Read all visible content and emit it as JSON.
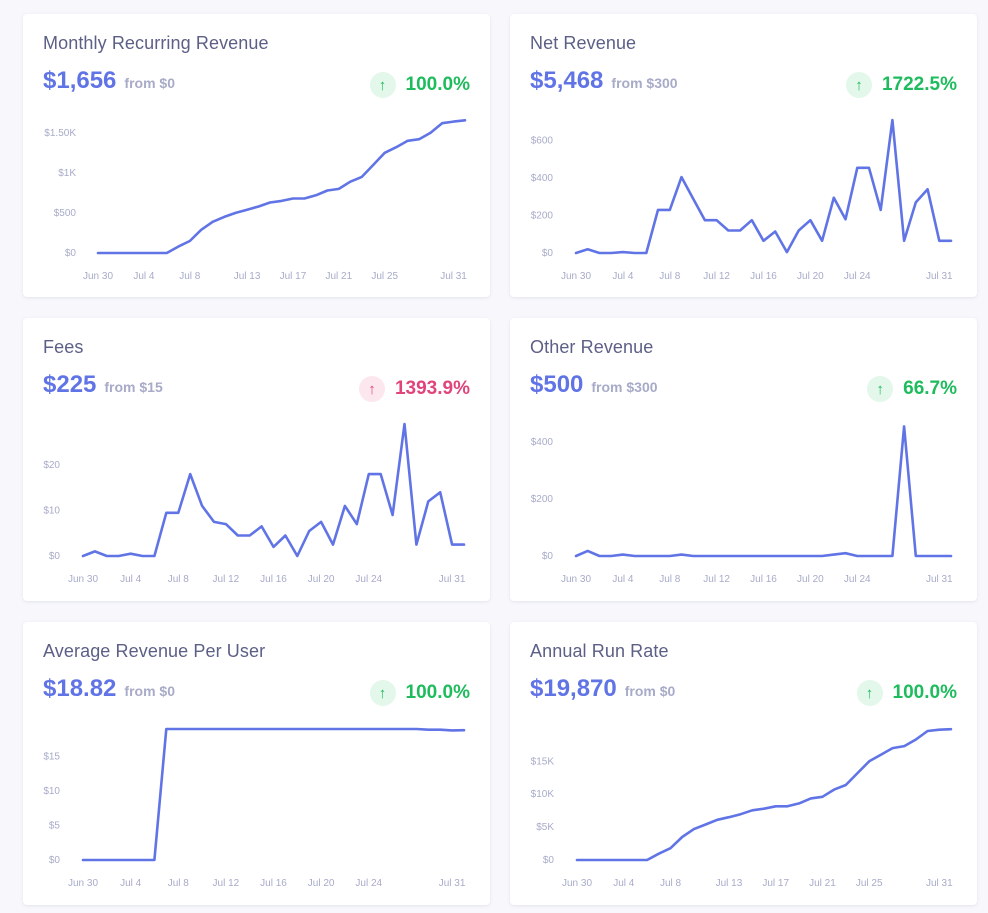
{
  "cards": [
    {
      "title": "Monthly Recurring Revenue",
      "value": "$1,656",
      "from": "from $0",
      "change": "100.0%",
      "direction": "up"
    },
    {
      "title": "Net Revenue",
      "value": "$5,468",
      "from": "from $300",
      "change": "1722.5%",
      "direction": "up"
    },
    {
      "title": "Fees",
      "value": "$225",
      "from": "from $15",
      "change": "1393.9%",
      "direction": "down"
    },
    {
      "title": "Other Revenue",
      "value": "$500",
      "from": "from $300",
      "change": "66.7%",
      "direction": "up"
    },
    {
      "title": "Average Revenue Per User",
      "value": "$18.82",
      "from": "from $0",
      "change": "100.0%",
      "direction": "up"
    },
    {
      "title": "Annual Run Rate",
      "value": "$19,870",
      "from": "from $0",
      "change": "100.0%",
      "direction": "up"
    }
  ],
  "colors": {
    "line": "#6174e6",
    "up": "#1ebc5d",
    "down": "#e0447a"
  },
  "icons": {
    "change": "arrow-up-icon"
  },
  "chart_data": [
    {
      "type": "line",
      "x": [
        0,
        1,
        2,
        3,
        4,
        5,
        6,
        7,
        8,
        9,
        10,
        11,
        12,
        13,
        14,
        15,
        16,
        17,
        18,
        19,
        20,
        21,
        22,
        23,
        24,
        25,
        26,
        27,
        28,
        29,
        30,
        31,
        32
      ],
      "xticks": [
        {
          "i": 0,
          "label": "Jun 30"
        },
        {
          "i": 4,
          "label": "Jul 4"
        },
        {
          "i": 8,
          "label": "Jul 8"
        },
        {
          "i": 13,
          "label": "Jul 13"
        },
        {
          "i": 17,
          "label": "Jul 17"
        },
        {
          "i": 21,
          "label": "Jul 21"
        },
        {
          "i": 25,
          "label": "Jul 25"
        },
        {
          "i": 31,
          "label": "Jul 31"
        }
      ],
      "yticks": [
        {
          "v": 0,
          "label": "$0"
        },
        {
          "v": 500,
          "label": "$500"
        },
        {
          "v": 1000,
          "label": "$1K"
        },
        {
          "v": 1500,
          "label": "$1.50K"
        }
      ],
      "ylim": [
        0,
        1660
      ],
      "values": [
        0,
        0,
        0,
        0,
        0,
        0,
        0,
        80,
        150,
        290,
        390,
        450,
        500,
        540,
        580,
        630,
        650,
        680,
        680,
        720,
        780,
        800,
        890,
        950,
        1100,
        1250,
        1320,
        1400,
        1420,
        1500,
        1620,
        1640,
        1656
      ]
    },
    {
      "type": "line",
      "x": [
        0,
        1,
        2,
        3,
        4,
        5,
        6,
        7,
        8,
        9,
        10,
        11,
        12,
        13,
        14,
        15,
        16,
        17,
        18,
        19,
        20,
        21,
        22,
        23,
        24,
        25,
        26,
        27,
        28,
        29,
        30,
        31,
        32
      ],
      "xticks": [
        {
          "i": 0,
          "label": "Jun 30"
        },
        {
          "i": 4,
          "label": "Jul 4"
        },
        {
          "i": 8,
          "label": "Jul 8"
        },
        {
          "i": 12,
          "label": "Jul 12"
        },
        {
          "i": 16,
          "label": "Jul 16"
        },
        {
          "i": 20,
          "label": "Jul 20"
        },
        {
          "i": 24,
          "label": "Jul 24"
        },
        {
          "i": 31,
          "label": "Jul 31"
        }
      ],
      "yticks": [
        {
          "v": 0,
          "label": "$0"
        },
        {
          "v": 200,
          "label": "$200"
        },
        {
          "v": 400,
          "label": "$400"
        },
        {
          "v": 600,
          "label": "$600"
        }
      ],
      "ylim": [
        0,
        710
      ],
      "values": [
        0,
        20,
        0,
        0,
        5,
        0,
        0,
        230,
        230,
        405,
        290,
        175,
        175,
        120,
        120,
        175,
        65,
        115,
        5,
        120,
        175,
        65,
        295,
        180,
        455,
        455,
        230,
        710,
        65,
        270,
        340,
        65,
        65
      ]
    },
    {
      "type": "line",
      "x": [
        0,
        1,
        2,
        3,
        4,
        5,
        6,
        7,
        8,
        9,
        10,
        11,
        12,
        13,
        14,
        15,
        16,
        17,
        18,
        19,
        20,
        21,
        22,
        23,
        24,
        25,
        26,
        27,
        28,
        29,
        30,
        31,
        32
      ],
      "xticks": [
        {
          "i": 0,
          "label": "Jun 30"
        },
        {
          "i": 4,
          "label": "Jul 4"
        },
        {
          "i": 8,
          "label": "Jul 8"
        },
        {
          "i": 12,
          "label": "Jul 12"
        },
        {
          "i": 16,
          "label": "Jul 16"
        },
        {
          "i": 20,
          "label": "Jul 20"
        },
        {
          "i": 24,
          "label": "Jul 24"
        },
        {
          "i": 31,
          "label": "Jul 31"
        }
      ],
      "yticks": [
        {
          "v": 0,
          "label": "$0"
        },
        {
          "v": 10,
          "label": "$10"
        },
        {
          "v": 20,
          "label": "$20"
        }
      ],
      "ylim": [
        0,
        29
      ],
      "values": [
        0,
        1,
        0,
        0,
        0.5,
        0,
        0,
        9.5,
        9.5,
        18,
        11,
        7.5,
        7,
        4.5,
        4.5,
        6.5,
        2,
        4.5,
        0,
        5.5,
        7.5,
        2.5,
        11,
        7,
        18,
        18,
        9,
        29,
        2.5,
        12,
        14,
        2.5,
        2.5
      ]
    },
    {
      "type": "line",
      "x": [
        0,
        1,
        2,
        3,
        4,
        5,
        6,
        7,
        8,
        9,
        10,
        11,
        12,
        13,
        14,
        15,
        16,
        17,
        18,
        19,
        20,
        21,
        22,
        23,
        24,
        25,
        26,
        27,
        28,
        29,
        30,
        31,
        32
      ],
      "xticks": [
        {
          "i": 0,
          "label": "Jun 30"
        },
        {
          "i": 4,
          "label": "Jul 4"
        },
        {
          "i": 8,
          "label": "Jul 8"
        },
        {
          "i": 12,
          "label": "Jul 12"
        },
        {
          "i": 16,
          "label": "Jul 16"
        },
        {
          "i": 20,
          "label": "Jul 20"
        },
        {
          "i": 24,
          "label": "Jul 24"
        },
        {
          "i": 31,
          "label": "Jul 31"
        }
      ],
      "yticks": [
        {
          "v": 0,
          "label": "$0"
        },
        {
          "v": 200,
          "label": "$200"
        },
        {
          "v": 400,
          "label": "$400"
        }
      ],
      "ylim": [
        0,
        460
      ],
      "values": [
        0,
        18,
        0,
        0,
        5,
        0,
        0,
        0,
        0,
        5,
        0,
        0,
        0,
        0,
        0,
        0,
        0,
        0,
        0,
        0,
        0,
        0,
        5,
        10,
        0,
        0,
        0,
        0,
        455,
        0,
        0,
        0,
        0
      ]
    },
    {
      "type": "line",
      "x": [
        0,
        1,
        2,
        3,
        4,
        5,
        6,
        7,
        8,
        9,
        10,
        11,
        12,
        13,
        14,
        15,
        16,
        17,
        18,
        19,
        20,
        21,
        22,
        23,
        24,
        25,
        26,
        27,
        28,
        29,
        30,
        31,
        32
      ],
      "xticks": [
        {
          "i": 0,
          "label": "Jun 30"
        },
        {
          "i": 4,
          "label": "Jul 4"
        },
        {
          "i": 8,
          "label": "Jul 8"
        },
        {
          "i": 12,
          "label": "Jul 12"
        },
        {
          "i": 16,
          "label": "Jul 16"
        },
        {
          "i": 20,
          "label": "Jul 20"
        },
        {
          "i": 24,
          "label": "Jul 24"
        },
        {
          "i": 31,
          "label": "Jul 31"
        }
      ],
      "yticks": [
        {
          "v": 0,
          "label": "$0"
        },
        {
          "v": 5,
          "label": "$5"
        },
        {
          "v": 10,
          "label": "$10"
        },
        {
          "v": 15,
          "label": "$15"
        }
      ],
      "ylim": [
        0,
        19
      ],
      "values": [
        0,
        0,
        0,
        0,
        0,
        0,
        0,
        19,
        19,
        19,
        19,
        19,
        19,
        19,
        19,
        19,
        19,
        19,
        19,
        19,
        19,
        19,
        19,
        19,
        19,
        19,
        19,
        19,
        19,
        18.9,
        18.9,
        18.8,
        18.82
      ]
    },
    {
      "type": "line",
      "x": [
        0,
        1,
        2,
        3,
        4,
        5,
        6,
        7,
        8,
        9,
        10,
        11,
        12,
        13,
        14,
        15,
        16,
        17,
        18,
        19,
        20,
        21,
        22,
        23,
        24,
        25,
        26,
        27,
        28,
        29,
        30,
        31,
        32
      ],
      "xticks": [
        {
          "i": 0,
          "label": "Jun 30"
        },
        {
          "i": 4,
          "label": "Jul 4"
        },
        {
          "i": 8,
          "label": "Jul 8"
        },
        {
          "i": 13,
          "label": "Jul 13"
        },
        {
          "i": 17,
          "label": "Jul 17"
        },
        {
          "i": 21,
          "label": "Jul 21"
        },
        {
          "i": 25,
          "label": "Jul 25"
        },
        {
          "i": 31,
          "label": "Jul 31"
        }
      ],
      "yticks": [
        {
          "v": 0,
          "label": "$0"
        },
        {
          "v": 5000,
          "label": "$5K"
        },
        {
          "v": 10000,
          "label": "$10K"
        },
        {
          "v": 15000,
          "label": "$15K"
        }
      ],
      "ylim": [
        0,
        19900
      ],
      "values": [
        0,
        0,
        0,
        0,
        0,
        0,
        0,
        950,
        1800,
        3500,
        4700,
        5400,
        6100,
        6500,
        6950,
        7550,
        7800,
        8150,
        8150,
        8600,
        9350,
        9600,
        10700,
        11400,
        13200,
        15000,
        16000,
        17000,
        17300,
        18300,
        19600,
        19800,
        19870
      ]
    }
  ]
}
